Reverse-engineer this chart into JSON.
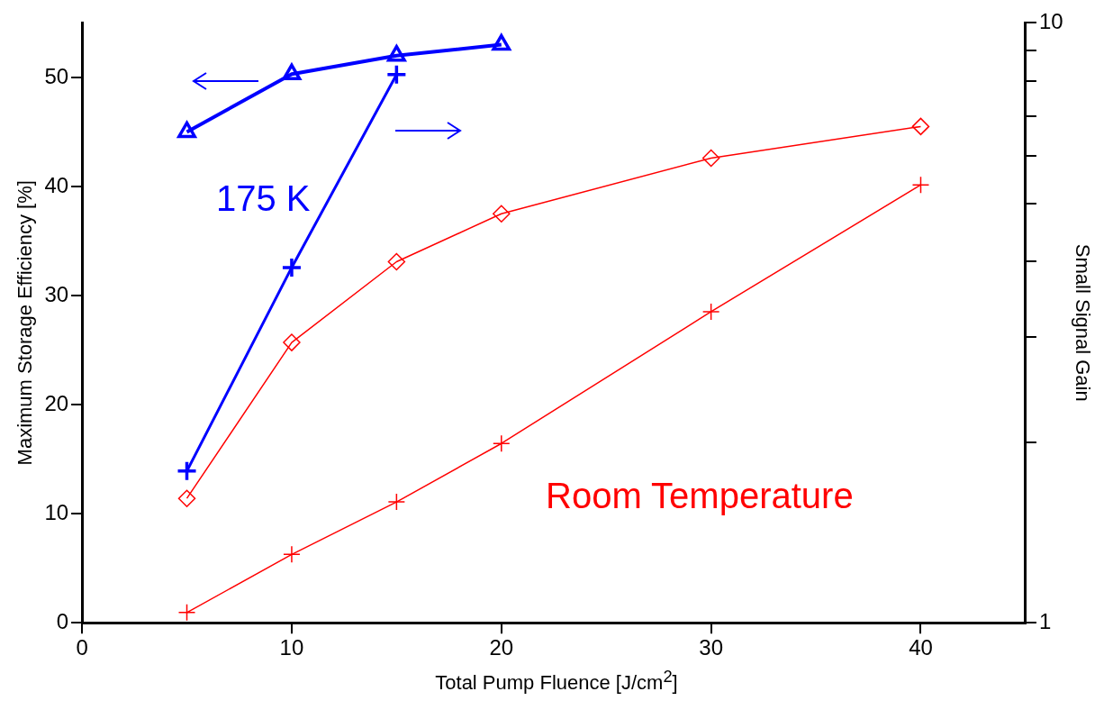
{
  "chart_data": {
    "type": "line",
    "xlabel": "Total Pump Fluence [J/cm$^{2}$]",
    "ylabel": "Maximum Storage Efficiency [%]",
    "y2label": "Small Signal Gain",
    "xlim": [
      0,
      45
    ],
    "xticks": [
      0,
      10,
      20,
      30,
      40
    ],
    "ylim": [
      0,
      55
    ],
    "yticks": [
      0,
      10,
      20,
      30,
      40,
      50
    ],
    "y2lim": [
      1,
      10
    ],
    "y2ticks": [
      1,
      {
        "value": 2,
        "label": null
      },
      {
        "value": 3,
        "label": null
      },
      {
        "value": 4,
        "label": null
      },
      {
        "value": 5,
        "label": null
      },
      {
        "value": 6,
        "label": null
      },
      {
        "value": 7,
        "label": null
      },
      {
        "value": 8,
        "label": null
      },
      {
        "value": 9,
        "label": null
      },
      10
    ],
    "log": "y2",
    "grid": false,
    "legend": false,
    "series": [
      {
        "color": "#0000ff",
        "x": [
          5,
          10,
          15,
          20
        ],
        "values": [
          45,
          50.3,
          52,
          53
        ],
        "marker": "triangle"
      },
      {
        "color": "#0000ff",
        "x": [
          5,
          10,
          15
        ],
        "values": [
          1.79,
          3.91,
          8.2
        ],
        "marker": "cross",
        "axis": "y2"
      },
      {
        "color": "#ff0000",
        "x": [
          5,
          10,
          15,
          20,
          30,
          40
        ],
        "values": [
          11.4,
          25.7,
          33.1,
          37.5,
          42.6,
          45.5
        ],
        "marker": "diamond"
      },
      {
        "color": "#ff0000",
        "x": [
          5,
          10,
          15,
          20,
          30,
          40
        ],
        "values": [
          1.04,
          1.3,
          1.59,
          1.99,
          3.3,
          5.37
        ],
        "marker": "cross",
        "axis": "y2"
      }
    ],
    "annotations": [
      "175 K",
      "Room Temperature"
    ]
  }
}
